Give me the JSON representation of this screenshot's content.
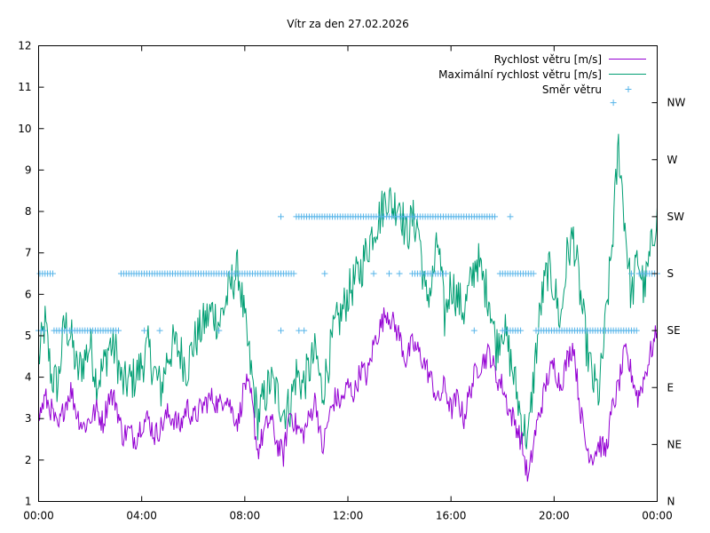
{
  "chart_data": {
    "type": "line",
    "title": "Vítr za den 27.02.2026",
    "x_unit": "hours",
    "xlim": [
      0,
      24
    ],
    "ylim": [
      1,
      12
    ],
    "y2lim": [
      0,
      8
    ],
    "x_ticks": [
      {
        "value": 0,
        "label": "00:00"
      },
      {
        "value": 4,
        "label": "04:00"
      },
      {
        "value": 8,
        "label": "08:00"
      },
      {
        "value": 12,
        "label": "12:00"
      },
      {
        "value": 16,
        "label": "16:00"
      },
      {
        "value": 20,
        "label": "20:00"
      },
      {
        "value": 24,
        "label": "00:00"
      }
    ],
    "y_ticks": [
      "1",
      "2",
      "3",
      "4",
      "5",
      "6",
      "7",
      "8",
      "9",
      "10",
      "11",
      "12"
    ],
    "y2_ticks": [
      {
        "value": 0,
        "label": "N"
      },
      {
        "value": 1,
        "label": "NE"
      },
      {
        "value": 2,
        "label": "E"
      },
      {
        "value": 3,
        "label": "SE"
      },
      {
        "value": 4,
        "label": "S"
      },
      {
        "value": 5,
        "label": "SW"
      },
      {
        "value": 6,
        "label": "W"
      },
      {
        "value": 7,
        "label": "NW"
      }
    ],
    "legend_position": "top-right",
    "series": [
      {
        "name": "Rychlost větru [m/s]",
        "color": "#9400d3",
        "kind": "line",
        "axis": "y",
        "x": [
          0,
          0.25,
          0.5,
          0.75,
          1,
          1.25,
          1.5,
          1.75,
          2,
          2.25,
          2.5,
          2.75,
          3,
          3.25,
          3.5,
          3.75,
          4,
          4.25,
          4.5,
          4.75,
          5,
          5.25,
          5.5,
          5.75,
          6,
          6.25,
          6.5,
          6.75,
          7,
          7.25,
          7.5,
          7.75,
          8,
          8.25,
          8.5,
          8.75,
          9,
          9.25,
          9.5,
          9.75,
          10,
          10.25,
          10.5,
          10.75,
          11,
          11.25,
          11.5,
          11.75,
          12,
          12.25,
          12.5,
          12.75,
          13,
          13.25,
          13.5,
          13.75,
          14,
          14.25,
          14.5,
          14.75,
          15,
          15.25,
          15.5,
          15.75,
          16,
          16.25,
          16.5,
          16.75,
          17,
          17.25,
          17.5,
          17.75,
          18,
          18.25,
          18.5,
          18.75,
          19,
          19.25,
          19.5,
          19.75,
          20,
          20.25,
          20.5,
          20.75,
          21,
          21.25,
          21.5,
          21.75,
          22,
          22.25,
          22.5,
          22.75,
          23,
          23.25,
          23.5,
          23.75,
          24
        ],
        "values": [
          3.0,
          3.5,
          3.2,
          2.7,
          3.3,
          3.7,
          3.1,
          2.8,
          3.0,
          3.2,
          2.9,
          3.6,
          3.4,
          2.6,
          2.7,
          2.5,
          2.9,
          3.0,
          2.6,
          2.8,
          3.1,
          3.0,
          2.8,
          3.3,
          3.0,
          3.2,
          3.4,
          3.5,
          3.3,
          3.6,
          3.2,
          2.9,
          3.9,
          3.5,
          2.2,
          2.7,
          3.0,
          2.4,
          2.1,
          3.2,
          2.8,
          2.6,
          3.0,
          3.5,
          2.2,
          3.0,
          3.5,
          3.4,
          3.8,
          3.6,
          4.2,
          4.0,
          4.8,
          5.2,
          5.6,
          5.3,
          5.0,
          4.4,
          4.8,
          4.6,
          4.3,
          3.9,
          3.4,
          3.8,
          3.2,
          3.5,
          3.0,
          3.7,
          4.2,
          4.4,
          4.6,
          4.0,
          3.8,
          3.2,
          2.9,
          2.4,
          1.5,
          2.6,
          3.3,
          4.0,
          4.3,
          3.8,
          4.4,
          4.8,
          3.3,
          2.3,
          2.1,
          2.4,
          2.2,
          3.2,
          3.8,
          4.6,
          4.1,
          3.5,
          4.0,
          4.6,
          5.1
        ]
      },
      {
        "name": "Maximální rychlost větru [m/s]",
        "color": "#009e73",
        "kind": "line",
        "axis": "y",
        "x": [
          0,
          0.25,
          0.5,
          0.75,
          1,
          1.25,
          1.5,
          1.75,
          2,
          2.25,
          2.5,
          2.75,
          3,
          3.25,
          3.5,
          3.75,
          4,
          4.25,
          4.5,
          4.75,
          5,
          5.25,
          5.5,
          5.75,
          6,
          6.25,
          6.5,
          6.75,
          7,
          7.25,
          7.5,
          7.75,
          8,
          8.25,
          8.5,
          8.75,
          9,
          9.25,
          9.5,
          9.75,
          10,
          10.25,
          10.5,
          10.75,
          11,
          11.25,
          11.5,
          11.75,
          12,
          12.25,
          12.5,
          12.75,
          13,
          13.25,
          13.5,
          13.75,
          14,
          14.25,
          14.5,
          14.75,
          15,
          15.25,
          15.5,
          15.75,
          16,
          16.25,
          16.5,
          16.75,
          17,
          17.25,
          17.5,
          17.75,
          18,
          18.25,
          18.5,
          18.75,
          19,
          19.25,
          19.5,
          19.75,
          20,
          20.25,
          20.5,
          20.75,
          21,
          21.25,
          21.5,
          21.75,
          22,
          22.25,
          22.5,
          22.75,
          23,
          23.25,
          23.5,
          23.75,
          24
        ],
        "values": [
          4.4,
          5.3,
          4.0,
          3.8,
          5.3,
          5.0,
          4.1,
          4.4,
          4.8,
          3.9,
          4.2,
          4.8,
          4.6,
          3.8,
          3.9,
          4.0,
          4.3,
          4.7,
          4.1,
          3.7,
          4.5,
          4.8,
          4.6,
          4.2,
          4.8,
          5.1,
          5.4,
          5.6,
          5.3,
          5.8,
          6.3,
          6.6,
          5.3,
          4.1,
          3.0,
          3.5,
          3.9,
          3.6,
          3.2,
          3.3,
          4.1,
          3.8,
          4.2,
          4.6,
          3.6,
          4.4,
          5.2,
          5.5,
          6.0,
          6.3,
          6.6,
          7.1,
          7.6,
          7.9,
          8.4,
          8.1,
          8.3,
          7.4,
          7.8,
          7.6,
          5.9,
          6.2,
          7.3,
          5.4,
          6.3,
          5.9,
          5.6,
          6.2,
          6.9,
          6.3,
          5.9,
          4.7,
          5.3,
          4.6,
          3.8,
          2.9,
          2.5,
          4.3,
          5.8,
          6.6,
          6.2,
          5.3,
          6.9,
          7.4,
          6.1,
          4.8,
          3.9,
          3.6,
          5.3,
          7.2,
          9.6,
          7.7,
          5.9,
          6.9,
          6.1,
          7.0,
          8.1
        ]
      },
      {
        "name": "Směr větru",
        "color": "#56b4e9",
        "kind": "points",
        "axis": "y2",
        "runs": [
          {
            "from": 0.05,
            "to": 0.6,
            "value": 4
          },
          {
            "from": 0.0,
            "to": 0.25,
            "value": 3
          },
          {
            "from": 0.6,
            "to": 3.1,
            "value": 3
          },
          {
            "from": 3.2,
            "to": 9.9,
            "value": 4
          },
          {
            "from": 10.0,
            "to": 17.7,
            "value": 5
          },
          {
            "from": 14.5,
            "to": 15.8,
            "value": 4
          },
          {
            "from": 17.9,
            "to": 19.2,
            "value": 4
          },
          {
            "from": 18.0,
            "to": 18.7,
            "value": 3
          },
          {
            "from": 19.3,
            "to": 23.2,
            "value": 3
          },
          {
            "from": 23.3,
            "to": 24.0,
            "value": 4
          }
        ],
        "points": [
          {
            "x": 4.1,
            "y": 3
          },
          {
            "x": 4.7,
            "y": 3
          },
          {
            "x": 7.0,
            "y": 3
          },
          {
            "x": 9.4,
            "y": 5
          },
          {
            "x": 9.4,
            "y": 3
          },
          {
            "x": 10.1,
            "y": 3
          },
          {
            "x": 10.3,
            "y": 3
          },
          {
            "x": 11.1,
            "y": 4
          },
          {
            "x": 13.0,
            "y": 4
          },
          {
            "x": 13.6,
            "y": 4
          },
          {
            "x": 14.0,
            "y": 4
          },
          {
            "x": 16.9,
            "y": 3
          },
          {
            "x": 18.3,
            "y": 5
          },
          {
            "x": 22.3,
            "y": 7
          },
          {
            "x": 23.0,
            "y": 4
          }
        ]
      }
    ]
  }
}
